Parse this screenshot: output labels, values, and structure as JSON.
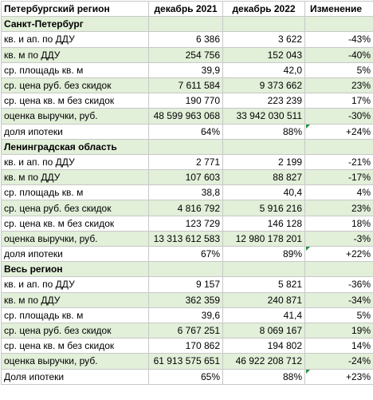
{
  "header": {
    "label": "Петербургский регион",
    "col2": "декабрь 2021",
    "col3": "декабрь 2022",
    "col4": "Изменение"
  },
  "sections": [
    {
      "title": "Санкт-Петербург",
      "rows": [
        {
          "label": "кв. и ап. по ДДУ",
          "v2021": "6 386",
          "v2022": "3 622",
          "change": "-43%"
        },
        {
          "label": "кв. м по ДДУ",
          "v2021": "254 756",
          "v2022": "152 043",
          "change": "-40%"
        },
        {
          "label": "ср. площадь кв. м",
          "v2021": "39,9",
          "v2022": "42,0",
          "change": "5%"
        },
        {
          "label": "ср. цена руб. без скидок",
          "v2021": "7 611 584",
          "v2022": "9 373 662",
          "change": "23%"
        },
        {
          "label": "ср. цена кв. м без скидок",
          "v2021": "190 770",
          "v2022": "223 239",
          "change": "17%"
        },
        {
          "label": "оценка выручки, руб.",
          "v2021": "48 599 963 068",
          "v2022": "33 942 030 511",
          "change": "-30%"
        },
        {
          "label": "доля ипотеки",
          "v2021": "64%",
          "v2022": "88%",
          "change": "+24%"
        }
      ]
    },
    {
      "title": "Ленинградская область",
      "rows": [
        {
          "label": "кв. и ап. по ДДУ",
          "v2021": "2 771",
          "v2022": "2 199",
          "change": "-21%"
        },
        {
          "label": "кв. м по ДДУ",
          "v2021": "107 603",
          "v2022": "88 827",
          "change": "-17%"
        },
        {
          "label": "ср. площадь кв. м",
          "v2021": "38,8",
          "v2022": "40,4",
          "change": "4%"
        },
        {
          "label": "ср. цена руб. без скидок",
          "v2021": "4 816 792",
          "v2022": "5 916 216",
          "change": "23%"
        },
        {
          "label": "ср. цена кв. м без скидок",
          "v2021": "123 729",
          "v2022": "146 128",
          "change": "18%"
        },
        {
          "label": "оценка выручки, руб.",
          "v2021": "13 313 612 583",
          "v2022": "12 980 178 201",
          "change": "-3%"
        },
        {
          "label": "доля ипотеки",
          "v2021": "67%",
          "v2022": "89%",
          "change": "+22%"
        }
      ]
    },
    {
      "title": "Весь регион",
      "rows": [
        {
          "label": "кв. и ап. по ДДУ",
          "v2021": "9 157",
          "v2022": "5 821",
          "change": "-36%"
        },
        {
          "label": "кв. м по ДДУ",
          "v2021": "362 359",
          "v2022": "240 871",
          "change": "-34%"
        },
        {
          "label": "ср. площадь кв. м",
          "v2021": "39,6",
          "v2022": "41,4",
          "change": "5%"
        },
        {
          "label": "ср. цена руб. без скидок",
          "v2021": "6 767 251",
          "v2022": "8 069 167",
          "change": "19%"
        },
        {
          "label": "ср. цена кв. м без скидок",
          "v2021": "170 862",
          "v2022": "194 802",
          "change": "14%"
        },
        {
          "label": "оценка выручки, руб.",
          "v2021": "61 913 575 651",
          "v2022": "46 922 208 712",
          "change": "-24%"
        },
        {
          "label": "Доля ипотеки",
          "v2021": "65%",
          "v2022": "88%",
          "change": "+23%"
        }
      ]
    }
  ],
  "colors": {
    "band_green": "#e2efd9",
    "grid": "#c8c8c8",
    "comment_marker": "#1f8e3d"
  }
}
